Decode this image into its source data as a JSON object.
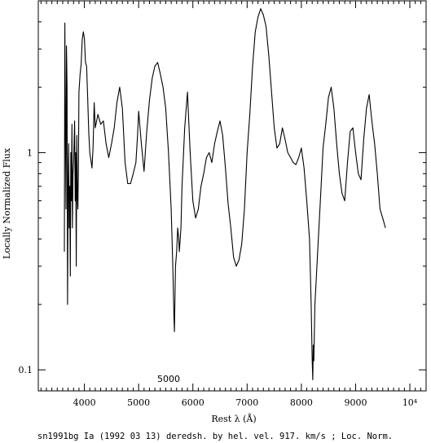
{
  "chart_data": {
    "type": "line",
    "xlabel": "Rest λ (Å)",
    "ylabel": "Locally Normalized Flux",
    "footer": "sn1991bg Ia (1992 03 13) deredsh. by hel. vel.   917. km/s ;  Loc. Norm.",
    "annotation": "5000",
    "xlim": [
      3150,
      10300
    ],
    "ylim": [
      0.08,
      5.0
    ],
    "y_scale": "log",
    "x_ticks": [
      {
        "value": 4000,
        "label": "4000"
      },
      {
        "value": 5000,
        "label": "5000"
      },
      {
        "value": 6000,
        "label": "6000"
      },
      {
        "value": 7000,
        "label": "7000"
      },
      {
        "value": 8000,
        "label": "8000"
      },
      {
        "value": 9000,
        "label": "9000"
      },
      {
        "value": 10000,
        "label": "10⁴"
      }
    ],
    "x_minor_step": 100,
    "y_ticks": [
      {
        "value": 0.1,
        "label": "0.1"
      },
      {
        "value": 1,
        "label": "1"
      }
    ],
    "y_minor": [
      0.2,
      0.3,
      0.4,
      0.5,
      0.6,
      0.7,
      0.8,
      0.9,
      2,
      3,
      4
    ],
    "grid": false,
    "series": [
      {
        "color": "#000000",
        "x": [
          3630,
          3640,
          3650,
          3660,
          3670,
          3680,
          3690,
          3700,
          3710,
          3720,
          3730,
          3740,
          3750,
          3760,
          3770,
          3780,
          3790,
          3800,
          3810,
          3820,
          3830,
          3840,
          3850,
          3860,
          3870,
          3880,
          3890,
          3900,
          3920,
          3940,
          3960,
          3980,
          4000,
          4020,
          4040,
          4060,
          4080,
          4100,
          4120,
          4140,
          4160,
          4180,
          4200,
          4250,
          4300,
          4350,
          4400,
          4450,
          4500,
          4550,
          4600,
          4650,
          4700,
          4750,
          4800,
          4850,
          4900,
          4950,
          4980,
          5000,
          5050,
          5100,
          5150,
          5200,
          5250,
          5300,
          5350,
          5400,
          5450,
          5500,
          5550,
          5600,
          5630,
          5650,
          5660,
          5670,
          5680,
          5700,
          5720,
          5740,
          5750,
          5780,
          5800,
          5850,
          5900,
          5950,
          6000,
          6050,
          6100,
          6150,
          6200,
          6250,
          6300,
          6350,
          6400,
          6450,
          6500,
          6550,
          6600,
          6650,
          6700,
          6750,
          6800,
          6850,
          6900,
          6950,
          7000,
          7050,
          7100,
          7150,
          7200,
          7250,
          7300,
          7350,
          7400,
          7450,
          7500,
          7550,
          7600,
          7650,
          7700,
          7750,
          7800,
          7850,
          7900,
          7950,
          8000,
          8050,
          8100,
          8150,
          8180,
          8200,
          8210,
          8220,
          8230,
          8250,
          8270,
          8300,
          8350,
          8400,
          8450,
          8500,
          8550,
          8600,
          8650,
          8700,
          8750,
          8800,
          8850,
          8900,
          8950,
          9000,
          9050,
          9100,
          9150,
          9200,
          9250,
          9300,
          9350,
          9400,
          9450,
          9500,
          9550
        ],
        "y": [
          0.35,
          3.95,
          1.3,
          0.55,
          3.1,
          2.0,
          0.2,
          0.65,
          1.1,
          0.45,
          0.7,
          0.27,
          1.0,
          0.6,
          1.35,
          0.45,
          0.8,
          0.9,
          1.1,
          1.4,
          0.6,
          1.0,
          0.3,
          1.2,
          0.65,
          0.55,
          0.9,
          1.9,
          2.3,
          2.55,
          3.3,
          3.6,
          3.35,
          2.6,
          2.5,
          1.8,
          1.25,
          1.0,
          0.92,
          0.85,
          1.05,
          1.7,
          1.3,
          1.5,
          1.35,
          1.4,
          1.1,
          0.95,
          1.1,
          1.3,
          1.7,
          2.0,
          1.6,
          0.9,
          0.72,
          0.72,
          0.8,
          0.9,
          1.2,
          1.55,
          1.1,
          0.82,
          1.25,
          1.75,
          2.2,
          2.5,
          2.6,
          2.3,
          2.0,
          1.6,
          1.0,
          0.55,
          0.3,
          0.18,
          0.15,
          0.22,
          0.3,
          0.35,
          0.45,
          0.4,
          0.35,
          0.45,
          0.7,
          1.3,
          1.9,
          1.0,
          0.6,
          0.5,
          0.55,
          0.7,
          0.8,
          0.95,
          1.0,
          0.9,
          1.1,
          1.25,
          1.4,
          1.2,
          0.85,
          0.58,
          0.45,
          0.33,
          0.3,
          0.32,
          0.38,
          0.55,
          1.0,
          1.5,
          2.5,
          3.6,
          4.2,
          4.6,
          4.3,
          3.8,
          2.8,
          1.9,
          1.3,
          1.05,
          1.1,
          1.3,
          1.15,
          1.0,
          0.95,
          0.9,
          0.88,
          0.95,
          1.05,
          0.85,
          0.6,
          0.4,
          0.2,
          0.11,
          0.09,
          0.13,
          0.11,
          0.2,
          0.25,
          0.35,
          0.6,
          1.05,
          1.35,
          1.8,
          2.0,
          1.6,
          1.1,
          0.8,
          0.65,
          0.6,
          0.9,
          1.25,
          1.3,
          1.0,
          0.8,
          0.75,
          1.15,
          1.6,
          1.85,
          1.4,
          1.1,
          0.8,
          0.55,
          0.5,
          0.45
        ]
      }
    ]
  }
}
